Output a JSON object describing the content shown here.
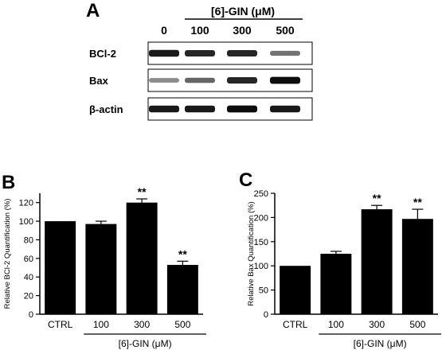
{
  "blot": {
    "panel": "A",
    "treatment_label": "[6]-GIN (μM)",
    "lanes": [
      "0",
      "100",
      "300",
      "500"
    ],
    "rows": [
      {
        "label": "BCl-2",
        "intensity": [
          0.9,
          0.85,
          0.85,
          0.55
        ]
      },
      {
        "label": "Bax",
        "intensity": [
          0.45,
          0.6,
          0.85,
          0.95
        ]
      },
      {
        "label": "β-actin",
        "intensity": [
          0.9,
          0.9,
          0.95,
          0.9
        ]
      }
    ]
  },
  "chart_data": [
    {
      "type": "bar",
      "panel": "B",
      "categories": [
        "CTRL",
        "100",
        "300",
        "500"
      ],
      "values": [
        100,
        97,
        120,
        53
      ],
      "errors": [
        0,
        3,
        4,
        4
      ],
      "annotations": [
        "",
        "",
        "**",
        "**"
      ],
      "ylabel": "Relative BCl-2 Quantification (%)",
      "group_label": "[6]-GIN (μM)",
      "ylim": [
        0,
        130
      ],
      "yticks": [
        0,
        20,
        40,
        60,
        80,
        100,
        120
      ],
      "bar_color": "#000000"
    },
    {
      "type": "bar",
      "panel": "C",
      "categories": [
        "CTRL",
        "100",
        "300",
        "500"
      ],
      "values": [
        100,
        125,
        217,
        197
      ],
      "errors": [
        0,
        5,
        8,
        20
      ],
      "annotations": [
        "",
        "",
        "**",
        "**"
      ],
      "ylabel": "Relative Bax Quantification (%)",
      "group_label": "[6]-GIN (μM)",
      "ylim": [
        0,
        250
      ],
      "yticks": [
        0,
        50,
        100,
        150,
        200,
        250
      ],
      "bar_color": "#000000"
    }
  ]
}
